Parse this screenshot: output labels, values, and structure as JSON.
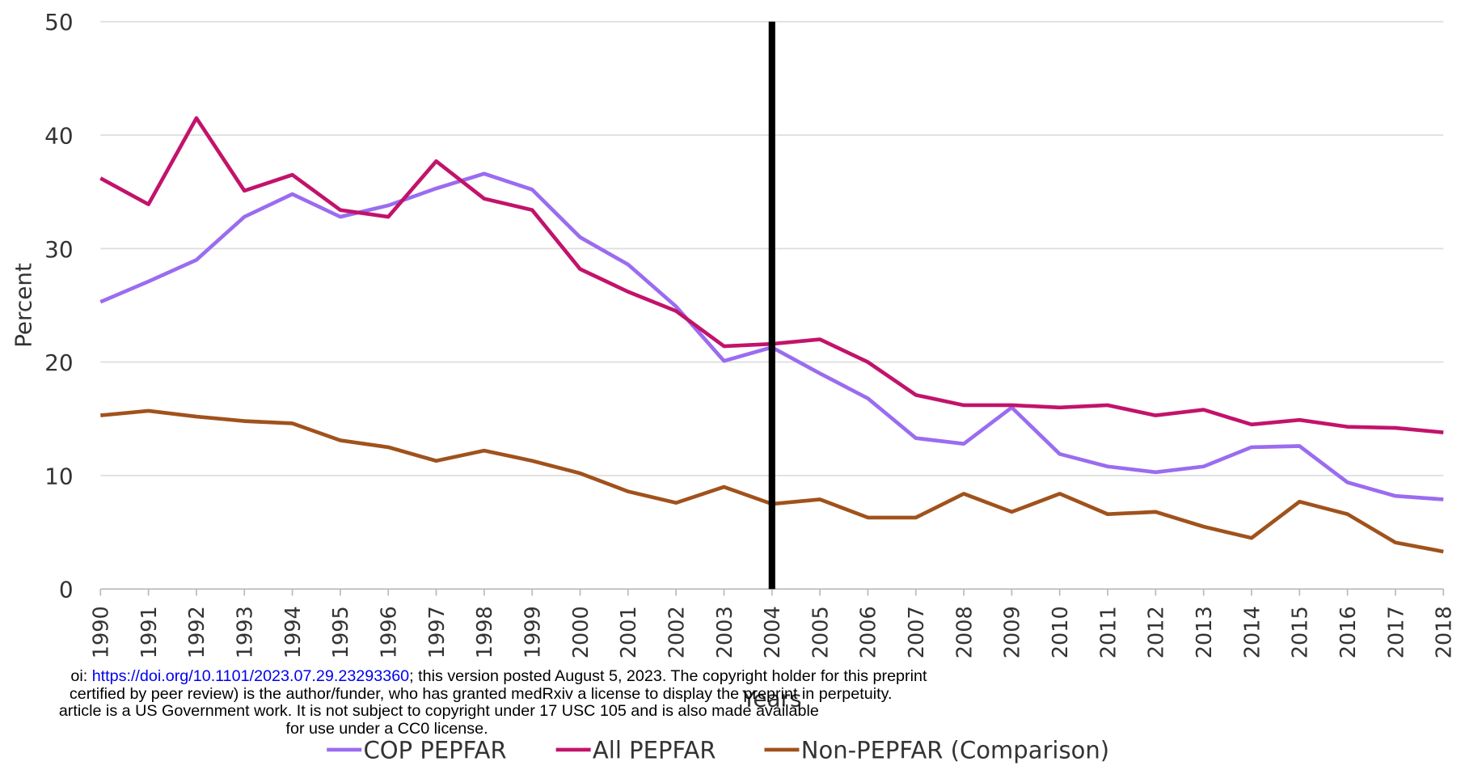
{
  "chart_data": {
    "type": "line",
    "y_label": "Percent",
    "x_label": "Years",
    "categories": [
      "1990",
      "1991",
      "1992",
      "1993",
      "1994",
      "1995",
      "1996",
      "1997",
      "1998",
      "1999",
      "2000",
      "2001",
      "2002",
      "2003",
      "2004",
      "2005",
      "2006",
      "2007",
      "2008",
      "2009",
      "2010",
      "2011",
      "2012",
      "2013",
      "2014",
      "2015",
      "2016",
      "2017",
      "2018"
    ],
    "series": [
      {
        "name": "COP PEPFAR",
        "color": "#9a6cf0",
        "values": [
          25.3,
          27.1,
          29.0,
          32.8,
          34.8,
          32.8,
          33.8,
          35.3,
          36.6,
          35.2,
          31.0,
          28.6,
          24.9,
          20.1,
          21.3,
          19.0,
          16.8,
          13.3,
          12.8,
          16.0,
          11.9,
          10.8,
          10.3,
          10.8,
          12.5,
          12.6,
          9.4,
          8.2,
          7.9
        ]
      },
      {
        "name": "All PEPFAR",
        "color": "#c2136b",
        "values": [
          36.2,
          33.9,
          41.5,
          35.1,
          36.5,
          33.4,
          32.8,
          37.7,
          34.4,
          33.4,
          28.2,
          26.2,
          24.5,
          21.4,
          21.6,
          22.0,
          20.0,
          17.1,
          16.2,
          16.2,
          16.0,
          16.2,
          15.3,
          15.8,
          14.5,
          14.9,
          14.3,
          14.2,
          13.8
        ]
      },
      {
        "name": "Non-PEPFAR (Comparison)",
        "color": "#a0521c",
        "values": [
          15.3,
          15.7,
          15.2,
          14.8,
          14.6,
          13.1,
          12.5,
          11.3,
          12.2,
          11.3,
          10.2,
          8.6,
          7.6,
          9.0,
          7.5,
          7.9,
          6.3,
          6.3,
          8.4,
          6.8,
          8.4,
          6.6,
          6.8,
          5.5,
          4.5,
          7.7,
          6.6,
          4.1,
          3.3
        ]
      }
    ],
    "ylim": [
      0,
      50
    ],
    "yticks": [
      0,
      10,
      20,
      30,
      40,
      50
    ],
    "grid": true,
    "legend": "bottom",
    "reference_line": {
      "category": "2004",
      "color": "#000000"
    }
  },
  "footer": {
    "line1_prefix": "oi: ",
    "line1_link": "https://doi.org/10.1101/2023.07.29.23293360",
    "line1_suffix": "; this version posted August 5, 2023. The copyright holder for this preprint",
    "line2": "certified by peer review) is the author/funder, who has granted medRxiv a license to display the preprint in perpetuity.",
    "line3": "article is a US Government work. It is not subject to copyright under 17 USC 105 and is also made available",
    "line4": "for use under a CC0 license."
  }
}
